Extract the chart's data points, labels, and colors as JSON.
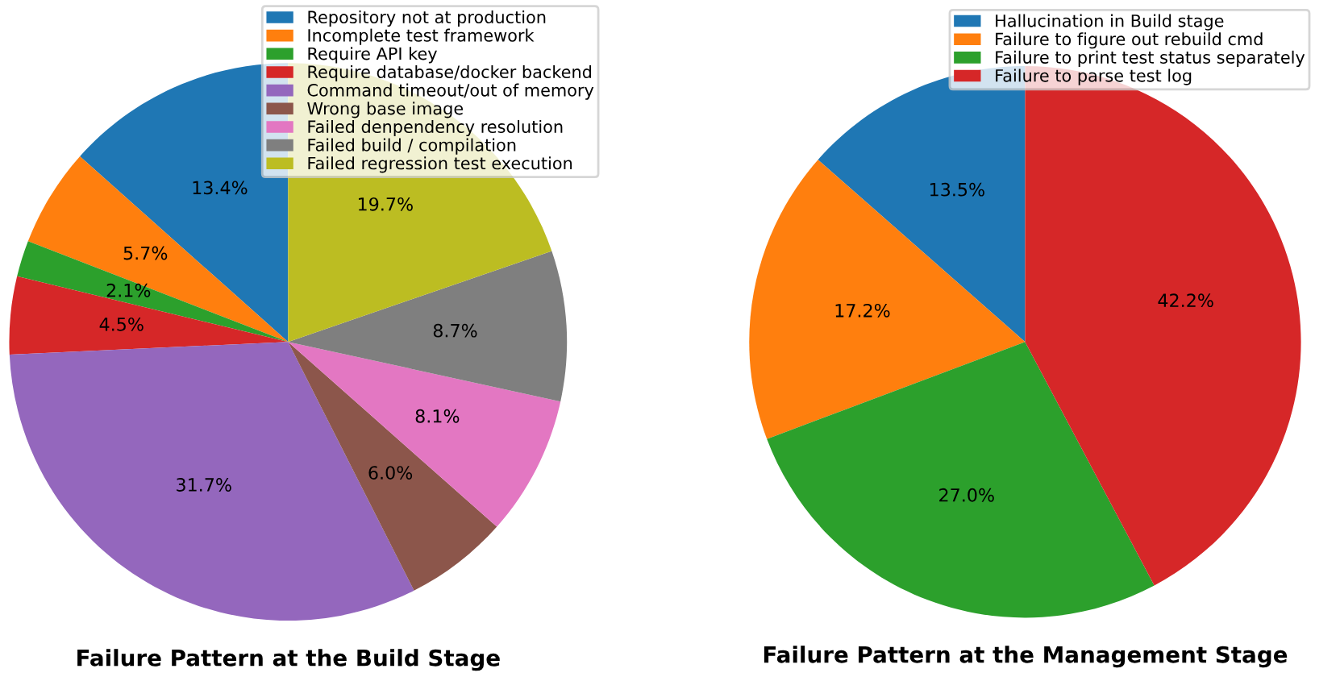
{
  "chart_data": [
    {
      "type": "pie",
      "title": "Failure Pattern at the Build Stage",
      "categories": [
        "Repository not at production",
        "Incomplete test framework",
        "Require API key",
        "Require database/docker backend",
        "Command timeout/out of memory",
        "Wrong base image",
        "Failed denpendency resolution",
        "Failed build / compilation",
        "Failed regression test execution"
      ],
      "values": [
        13.4,
        5.7,
        2.1,
        4.5,
        31.7,
        6.0,
        8.1,
        8.7,
        19.7
      ],
      "value_labels": [
        "13.4%",
        "5.7%",
        "2.1%",
        "4.5%",
        "31.7%",
        "6.0%",
        "8.1%",
        "8.7%",
        "19.7%"
      ],
      "colors": [
        "#1f77b4",
        "#ff7f0e",
        "#2ca02c",
        "#d62728",
        "#9467bd",
        "#8c564b",
        "#e377c2",
        "#7f7f7f",
        "#bcbd22"
      ],
      "legend": "top right"
    },
    {
      "type": "pie",
      "title": "Failure Pattern at the Management Stage",
      "categories": [
        "Hallucination in Build stage",
        "Failure to figure out rebuild cmd",
        "Failure to print test status separately",
        "Failure to parse test log"
      ],
      "values": [
        13.5,
        17.2,
        27.0,
        42.2
      ],
      "value_labels": [
        "13.5%",
        "17.2%",
        "27.0%",
        "42.2%"
      ],
      "colors": [
        "#1f77b4",
        "#ff7f0e",
        "#2ca02c",
        "#d62728"
      ],
      "legend": "top right"
    }
  ]
}
